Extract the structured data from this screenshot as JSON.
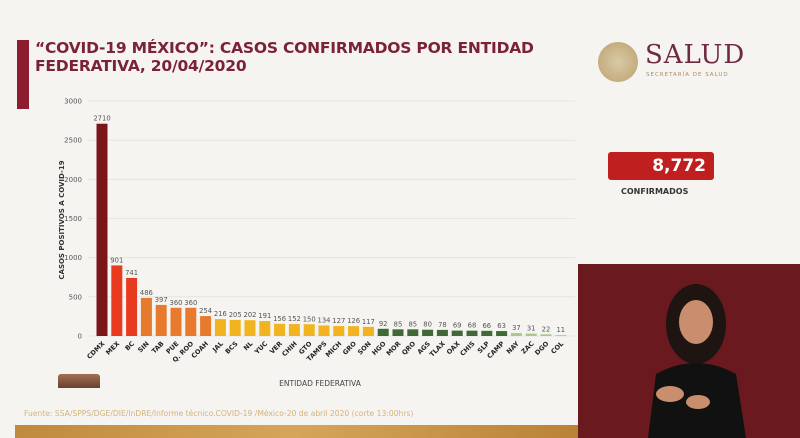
{
  "header": {
    "title_line1": "“COVID-19 MÉXICO”: CASOS CONFIRMADOS POR ENTIDAD",
    "title_line2": "FEDERATIVA, 20/04/2020",
    "brand": "SALUD",
    "brand_sub": "SECRETARÍA DE SALUD"
  },
  "summary": {
    "total": "8,772",
    "label": "CONFIRMADOS",
    "color": "#c01f1f"
  },
  "footer": {
    "source": "Fuente: SSA/SPPS/DGE/DIE/InDRE/Informe técnico.COVID-19 /México-20 de abril 2020 (corte 13:00hrs)"
  },
  "chart_data": {
    "type": "bar",
    "title": "“COVID-19 MÉXICO”: CASOS CONFIRMADOS POR ENTIDAD FEDERATIVA, 20/04/2020",
    "xlabel": "ENTIDAD FEDERATIVA",
    "ylabel": "CASOS POSITIVOS A COVID-19",
    "ylim": [
      0,
      3000
    ],
    "yticks": [
      0,
      500,
      1000,
      1500,
      2000,
      2500,
      3000
    ],
    "grid": true,
    "categories": [
      "CDMX",
      "MEX",
      "BC",
      "SIN",
      "TAB",
      "PUE",
      "Q. ROO",
      "COAH",
      "JAL",
      "BCS",
      "NL",
      "YUC",
      "VER",
      "CHIH",
      "GTO",
      "TAMPS",
      "MICH",
      "GRO",
      "SON",
      "HGO",
      "MOR",
      "QRO",
      "AGS",
      "TLAX",
      "OAX",
      "CHIS",
      "SLP",
      "CAMP",
      "NAY",
      "ZAC",
      "DGO",
      "COL"
    ],
    "values": [
      2710,
      901,
      741,
      486,
      397,
      360,
      360,
      254,
      216,
      205,
      202,
      191,
      156,
      152,
      150,
      134,
      127,
      126,
      117,
      92,
      85,
      85,
      80,
      78,
      69,
      68,
      66,
      63,
      37,
      31,
      22,
      11
    ],
    "colors": [
      "#7a1518",
      "#e83a1f",
      "#e83a1f",
      "#e77a2c",
      "#e77a2c",
      "#e77a2c",
      "#e77a2c",
      "#e77a2c",
      "#f2b320",
      "#f2b320",
      "#f2b320",
      "#f2b320",
      "#f2b320",
      "#f2b320",
      "#f2b320",
      "#f2b320",
      "#f2b320",
      "#f2b320",
      "#f2b320",
      "#3f6a36",
      "#3f6a36",
      "#3f6a36",
      "#3f6a36",
      "#3f6a36",
      "#3f6a36",
      "#3f6a36",
      "#3f6a36",
      "#3f6a36",
      "#a9c98c",
      "#a9c98c",
      "#a9c98c",
      "#a9c98c"
    ]
  }
}
